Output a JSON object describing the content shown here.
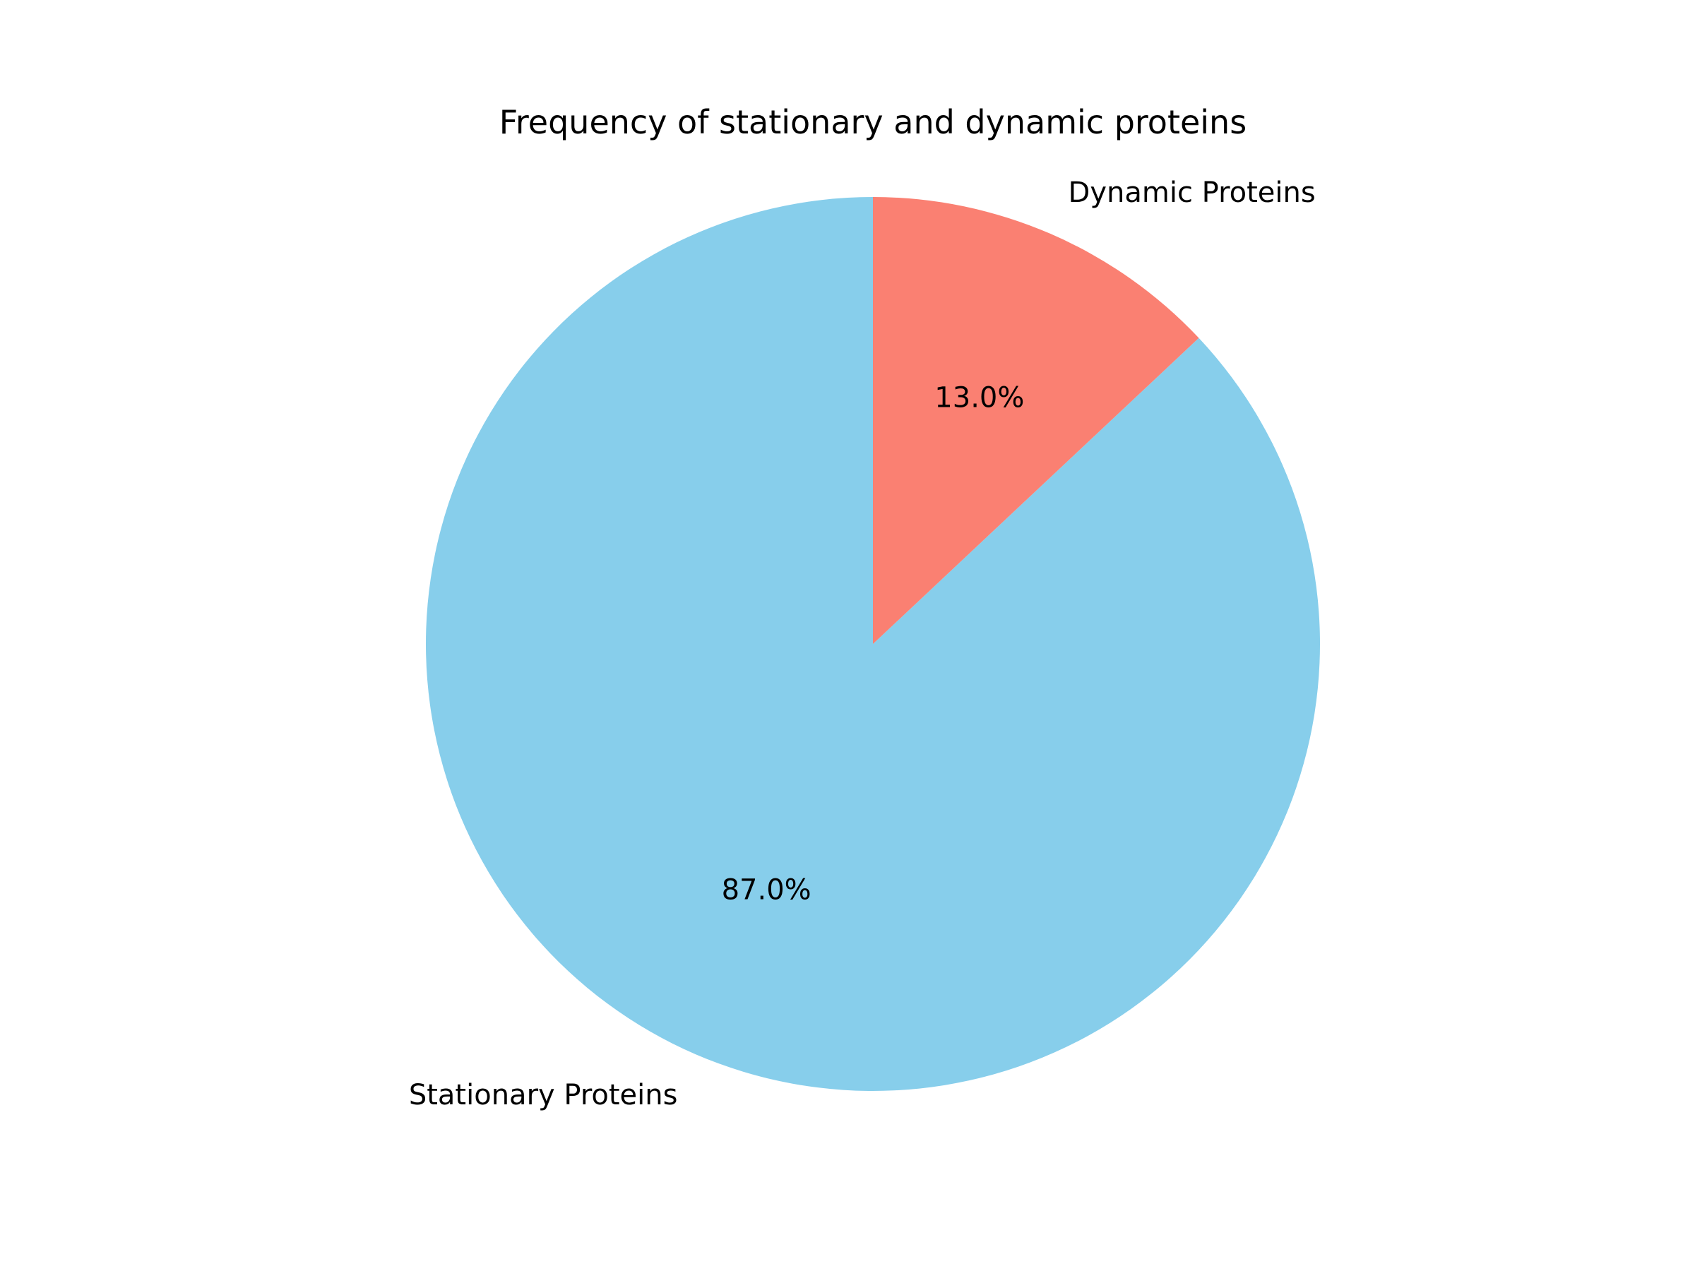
{
  "chart_data": {
    "type": "pie",
    "title": "Frequency of stationary and dynamic proteins",
    "slices": [
      {
        "label": "Stationary Proteins",
        "value": 87.0,
        "pct_label": "87.0%",
        "color": "#87CEEB"
      },
      {
        "label": "Dynamic Proteins",
        "value": 13.0,
        "pct_label": "13.0%",
        "color": "#FA8072"
      }
    ],
    "start_angle_deg": 90,
    "direction": "counterclockwise"
  }
}
